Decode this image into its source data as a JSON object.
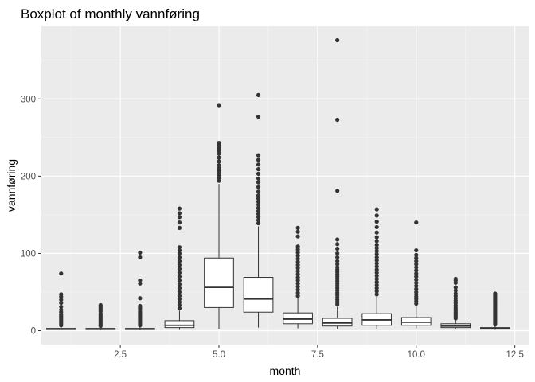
{
  "chart_data": {
    "type": "boxplot",
    "title": "Boxplot of monthly vannføring",
    "xlabel": "month",
    "ylabel": "vannføring",
    "xlim": [
      0.5,
      12.85
    ],
    "ylim": [
      -18,
      394
    ],
    "x_ticks": [
      2.5,
      5.0,
      7.5,
      10.0,
      12.5
    ],
    "x_tick_labels": [
      "2.5",
      "5.0",
      "7.5",
      "10.0",
      "12.5"
    ],
    "y_ticks": [
      0,
      100,
      200,
      300
    ],
    "y_tick_labels": [
      "0",
      "100",
      "200",
      "300"
    ],
    "grid": true,
    "legend": "none",
    "colors": {
      "panel": "#ebebeb",
      "grid_major": "#ffffff",
      "grid_minor": "#f5f5f5",
      "box_fill": "#ffffff",
      "box_line": "#333333",
      "outlier": "#333333"
    },
    "boxes": [
      {
        "month": 1,
        "min": 0.5,
        "q1": 1.5,
        "median": 2,
        "q3": 3,
        "max": 4,
        "outliers": [
          7,
          9,
          11,
          13,
          15,
          17,
          19,
          21,
          24,
          27,
          31,
          36,
          40,
          44,
          47,
          74
        ]
      },
      {
        "month": 2,
        "min": 0.5,
        "q1": 1.5,
        "median": 2,
        "q3": 3,
        "max": 4,
        "outliers": [
          6,
          8,
          10,
          12,
          14,
          16,
          18,
          20,
          22,
          25,
          27,
          29,
          31,
          33
        ]
      },
      {
        "month": 3,
        "min": 0.5,
        "q1": 1.5,
        "median": 2,
        "q3": 3,
        "max": 5,
        "outliers": [
          7,
          9,
          11,
          13,
          15,
          17,
          19,
          21,
          23,
          25,
          28,
          30,
          32,
          42,
          61,
          65,
          95,
          101
        ]
      },
      {
        "month": 4,
        "min": 1,
        "q1": 4,
        "median": 7,
        "q3": 13,
        "max": 26,
        "outliers": [
          29,
          33,
          37,
          41,
          45,
          50,
          55,
          60,
          65,
          70,
          75,
          80,
          85,
          90,
          95,
          100,
          104,
          108,
          133,
          140,
          147,
          152,
          158
        ]
      },
      {
        "month": 5,
        "min": 2,
        "q1": 30,
        "median": 56,
        "q3": 94,
        "max": 190,
        "outliers": [
          194,
          198,
          202,
          206,
          210,
          214,
          219,
          224,
          229,
          233,
          236,
          240,
          243,
          291
        ]
      },
      {
        "month": 6,
        "min": 4,
        "q1": 24,
        "median": 41,
        "q3": 69,
        "max": 135,
        "outliers": [
          139,
          143,
          147,
          151,
          155,
          159,
          163,
          167,
          171,
          175,
          180,
          186,
          192,
          197,
          203,
          209,
          215,
          221,
          227,
          277,
          305
        ]
      },
      {
        "month": 7,
        "min": 3,
        "q1": 9,
        "median": 15,
        "q3": 23,
        "max": 42,
        "outliers": [
          45,
          49,
          53,
          57,
          61,
          65,
          69,
          73,
          77,
          81,
          85,
          89,
          93,
          97,
          101,
          105,
          109,
          122,
          128,
          133
        ]
      },
      {
        "month": 8,
        "min": 2,
        "q1": 6,
        "median": 10,
        "q3": 16,
        "max": 31,
        "outliers": [
          34,
          37,
          40,
          43,
          46,
          49,
          52,
          55,
          58,
          61,
          64,
          67,
          70,
          73,
          76,
          79,
          82,
          86,
          90,
          95,
          100,
          106,
          112,
          118,
          181,
          273,
          376
        ]
      },
      {
        "month": 9,
        "min": 2,
        "q1": 7,
        "median": 14,
        "q3": 22,
        "max": 44,
        "outliers": [
          47,
          51,
          55,
          59,
          63,
          67,
          71,
          75,
          79,
          83,
          87,
          91,
          95,
          99,
          103,
          107,
          111,
          116,
          121,
          127,
          134,
          141,
          149,
          157
        ]
      },
      {
        "month": 10,
        "min": 3,
        "q1": 7,
        "median": 11,
        "q3": 17,
        "max": 32,
        "outliers": [
          35,
          38,
          41,
          44,
          47,
          50,
          54,
          58,
          62,
          66,
          70,
          74,
          78,
          82,
          86,
          90,
          94,
          98,
          104,
          140
        ]
      },
      {
        "month": 11,
        "min": 2,
        "q1": 4,
        "median": 6,
        "q3": 9,
        "max": 14,
        "outliers": [
          16,
          18,
          20,
          22,
          24,
          26,
          28,
          30,
          33,
          36,
          39,
          42,
          45,
          48,
          52,
          56,
          62,
          65,
          67
        ]
      },
      {
        "month": 12,
        "min": 1,
        "q1": 2,
        "median": 3,
        "q3": 4,
        "max": 6,
        "outliers": [
          8,
          10,
          12,
          14,
          16,
          18,
          20,
          22,
          24,
          26,
          28,
          30,
          32,
          34,
          36,
          38,
          40,
          42,
          44,
          46,
          48
        ]
      }
    ]
  }
}
